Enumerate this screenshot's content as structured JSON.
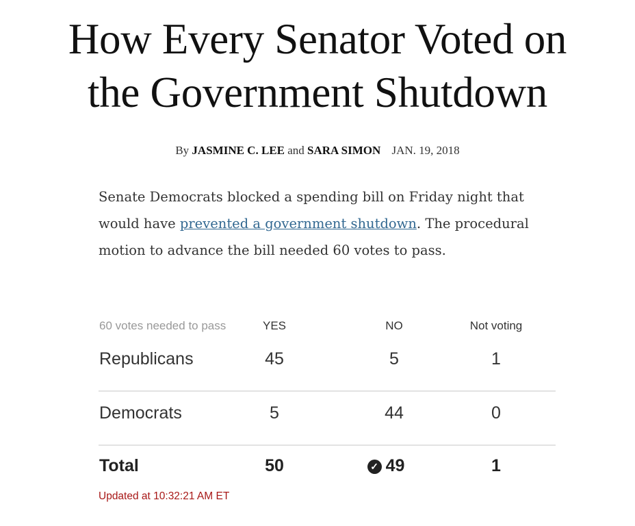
{
  "headline": {
    "line1": "How Every Senator Voted on",
    "line2": "the Government Shutdown"
  },
  "byline": {
    "by": "By",
    "author1": "JASMINE C. LEE",
    "and": "and",
    "author2": "SARA SIMON",
    "date": "JAN. 19, 2018"
  },
  "summary": {
    "before_link": "Senate Democrats blocked a spending bill on Friday night that would have ",
    "link_text": "prevented a government shutdown",
    "after_link": ". The procedural motion to advance the bill needed 60 votes to pass."
  },
  "table": {
    "headers": [
      "60 votes needed to pass",
      "YES",
      "NO",
      "Not voting"
    ],
    "rows": [
      {
        "party": "Republicans",
        "yes": "45",
        "no": "5",
        "not_voting": "1"
      },
      {
        "party": "Democrats",
        "yes": "5",
        "no": "44",
        "not_voting": "0"
      }
    ],
    "total": {
      "label": "Total",
      "yes": "50",
      "no": "49",
      "not_voting": "1",
      "winner_icon": "check-circle-icon"
    }
  },
  "updated": "Updated at 10:32:21 AM ET",
  "colors": {
    "link": "#326891",
    "updated": "#a81817"
  }
}
